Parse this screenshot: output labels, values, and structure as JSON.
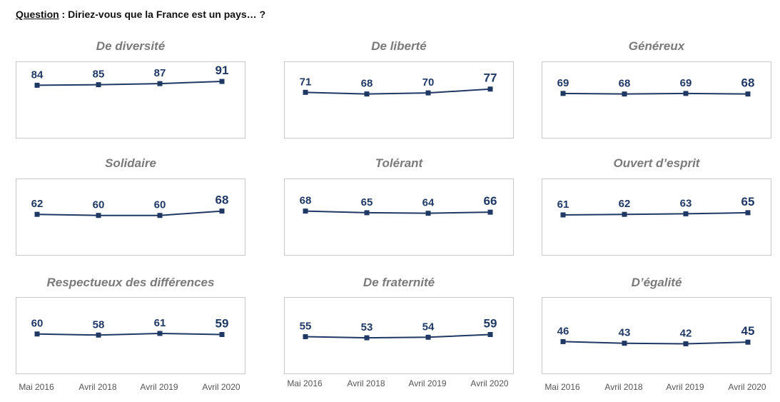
{
  "question": {
    "label": "Question",
    "separator": " : ",
    "text": "Diriez-vous que la France est un pays… ?"
  },
  "colors": {
    "line": "#1f3864",
    "title": "#7a7a7a",
    "border": "#c8c8c8"
  },
  "x_labels": [
    "Mai 2016",
    "Avril 2018",
    "Avril 2019",
    "Avril 2020"
  ],
  "chart_data": [
    {
      "type": "line",
      "title": "De diversité",
      "categories": [
        "Mai 2016",
        "Avril 2018",
        "Avril 2019",
        "Avril 2020"
      ],
      "values": [
        84,
        85,
        87,
        91
      ]
    },
    {
      "type": "line",
      "title": "De liberté",
      "categories": [
        "Mai 2016",
        "Avril 2018",
        "Avril 2019",
        "Avril 2020"
      ],
      "values": [
        71,
        68,
        70,
        77
      ]
    },
    {
      "type": "line",
      "title": "Généreux",
      "categories": [
        "Mai 2016",
        "Avril 2018",
        "Avril 2019",
        "Avril 2020"
      ],
      "values": [
        69,
        68,
        69,
        68
      ]
    },
    {
      "type": "line",
      "title": "Solidaire",
      "categories": [
        "Mai 2016",
        "Avril 2018",
        "Avril 2019",
        "Avril 2020"
      ],
      "values": [
        62,
        60,
        60,
        68
      ]
    },
    {
      "type": "line",
      "title": "Tolérant",
      "categories": [
        "Mai 2016",
        "Avril 2018",
        "Avril 2019",
        "Avril 2020"
      ],
      "values": [
        68,
        65,
        64,
        66
      ]
    },
    {
      "type": "line",
      "title": "Ouvert d’esprit",
      "categories": [
        "Mai 2016",
        "Avril 2018",
        "Avril 2019",
        "Avril 2020"
      ],
      "values": [
        61,
        62,
        63,
        65
      ]
    },
    {
      "type": "line",
      "title": "Respectueux des différences",
      "categories": [
        "Mai 2016",
        "Avril 2018",
        "Avril 2019",
        "Avril 2020"
      ],
      "values": [
        60,
        58,
        61,
        59
      ]
    },
    {
      "type": "line",
      "title": "De fraternité",
      "categories": [
        "Mai 2016",
        "Avril 2018",
        "Avril 2019",
        "Avril 2020"
      ],
      "values": [
        55,
        53,
        54,
        59
      ]
    },
    {
      "type": "line",
      "title": "D’égalité",
      "categories": [
        "Mai 2016",
        "Avril 2018",
        "Avril 2019",
        "Avril 2020"
      ],
      "values": [
        46,
        43,
        42,
        45
      ]
    }
  ]
}
